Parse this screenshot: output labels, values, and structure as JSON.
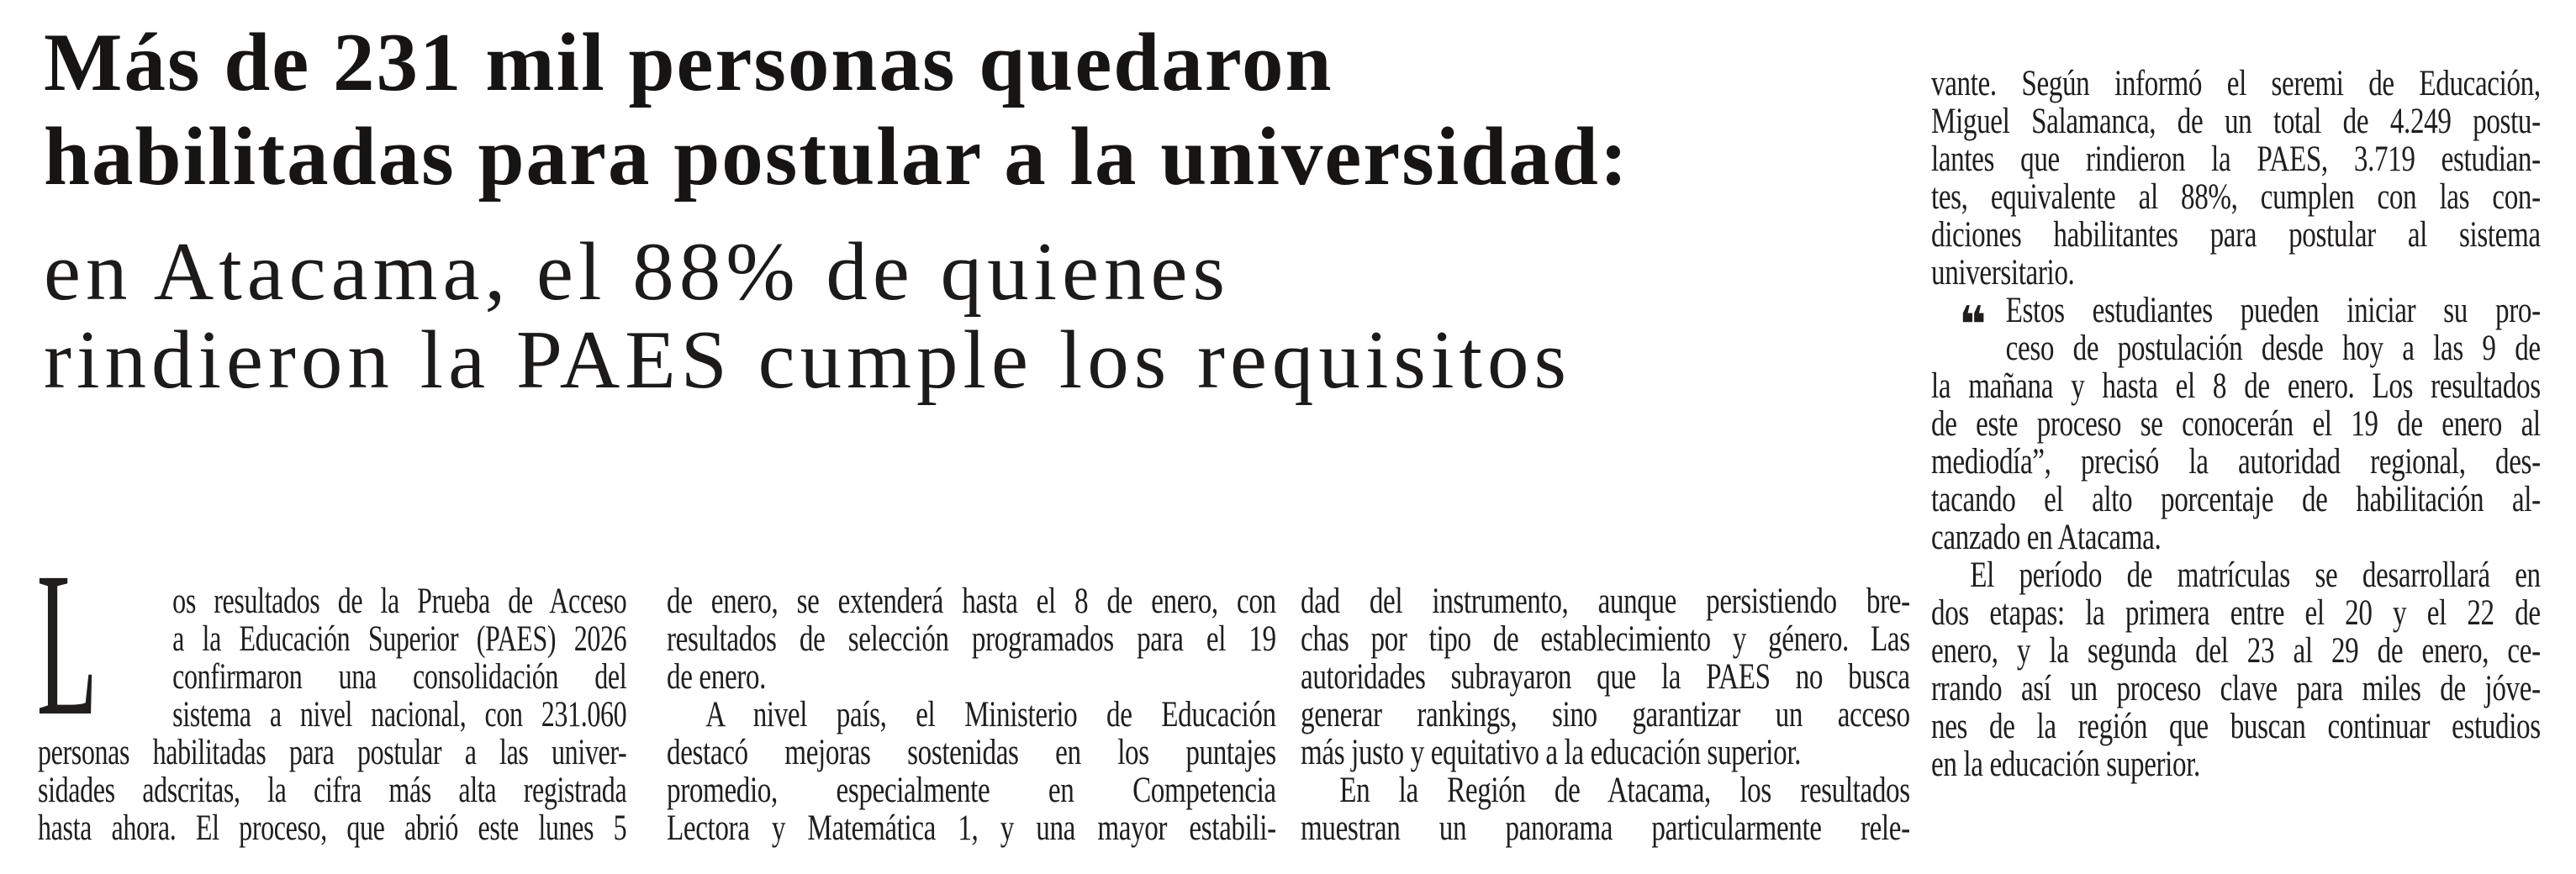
{
  "article": {
    "headline": {
      "line1": "Más de 231 mil personas quedaron",
      "line2": "habilitadas para postular a la universidad:",
      "line3": "en Atacama, el 88% de quienes",
      "line4": "rindieron la PAES cumple los requisitos"
    },
    "drop_cap": "L",
    "quote_mark": "❝",
    "columns": [
      {
        "lines": [
          {
            "t": "os resultados de la Prueba de Acceso",
            "d": true
          },
          {
            "t": "a la Educación Superior (PAES) 2026",
            "d": true
          },
          {
            "t": "confirmaron una consolidación del",
            "d": true
          },
          {
            "t": "sistema a nivel nacional, con 231.060",
            "d": true
          },
          {
            "t": "personas habilitadas para postular a las univer-"
          },
          {
            "t": "sidades adscritas, la cifra más alta registrada"
          },
          {
            "t": "hasta ahora. El proceso, que abrió este lunes 5"
          }
        ]
      },
      {
        "lines": [
          {
            "t": "de enero, se extenderá hasta el 8 de enero, con"
          },
          {
            "t": "resultados de selección programados para el 19"
          },
          {
            "t": "de enero.",
            "e": true
          },
          {
            "t": "A nivel país, el Ministerio de Educación",
            "i": true
          },
          {
            "t": "destacó mejoras sostenidas en los puntajes"
          },
          {
            "t": "promedio, especialmente en Competencia"
          },
          {
            "t": "Lectora y Matemática 1, y una mayor estabili-"
          }
        ]
      },
      {
        "lines": [
          {
            "t": "dad del instrumento, aunque persistiendo bre-"
          },
          {
            "t": "chas por tipo de establecimiento y género. Las"
          },
          {
            "t": "autoridades subrayaron que la PAES no busca"
          },
          {
            "t": "generar rankings, sino garantizar un acceso"
          },
          {
            "t": "más justo y equitativo a la educación superior.",
            "e": true
          },
          {
            "t": "En la Región de Atacama, los resultados",
            "i": true
          },
          {
            "t": "muestran un panorama particularmente rele-"
          }
        ]
      },
      {
        "lines": [
          {
            "t": "vante. Según informó el seremi de Educación,"
          },
          {
            "t": "Miguel Salamanca, de un total de 4.249 postu-"
          },
          {
            "t": "lantes que rindieron la PAES, 3.719 estudian-"
          },
          {
            "t": "tes, equivalente al 88%, cumplen con las con-"
          },
          {
            "t": "diciones habilitantes para postular al sistema"
          },
          {
            "t": "universitario.",
            "e": true
          },
          {
            "t": "Estos estudiantes pueden iniciar su pro-",
            "q": true
          },
          {
            "t": "ceso de postulación desde hoy a las 9 de",
            "q": true
          },
          {
            "t": "la mañana y hasta el 8 de enero. Los resultados"
          },
          {
            "t": "de este proceso se conocerán el 19 de enero al"
          },
          {
            "t": "mediodía”, precisó la autoridad regional, des-"
          },
          {
            "t": "tacando el alto porcentaje de habilitación al-"
          },
          {
            "t": "canzado en Atacama.",
            "e": true
          },
          {
            "t": "El período de matrículas se desarrollará en",
            "i": true
          },
          {
            "t": "dos etapas: la primera entre el 20 y el 22 de"
          },
          {
            "t": "enero, y la segunda del 23 al 29 de enero, ce-"
          },
          {
            "t": "rrando así un proceso clave para miles de jóve-"
          },
          {
            "t": "nes de la región que buscan continuar estudios"
          },
          {
            "t": "en la educación superior.",
            "e": true
          }
        ]
      }
    ]
  }
}
